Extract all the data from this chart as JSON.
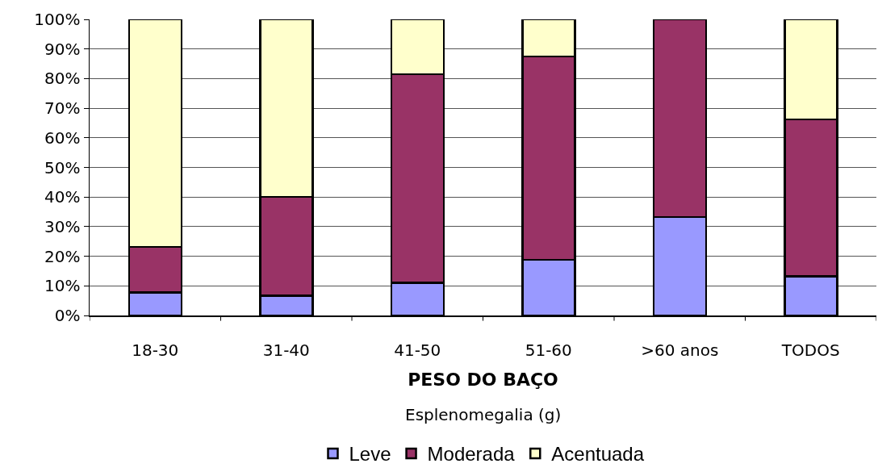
{
  "chart_data": {
    "type": "bar",
    "stacked": true,
    "xlabel": "PESO DO BAÇO",
    "annotations": [
      "Esplenomegalia (g)"
    ],
    "categories": [
      "18-30",
      "31-40",
      "41-50",
      "51-60",
      ">60 anos",
      "TODOS"
    ],
    "series": [
      {
        "name": "Leve",
        "color": "#9999ff",
        "values": [
          7.7,
          6.7,
          11.1,
          18.8,
          33.3,
          13.2
        ]
      },
      {
        "name": "Moderada",
        "color": "#993366",
        "values": [
          15.4,
          33.3,
          70.4,
          68.7,
          66.7,
          53.0
        ]
      },
      {
        "name": "Acentuada",
        "color": "#ffffcc",
        "values": [
          76.9,
          60.0,
          18.5,
          12.5,
          0,
          33.8
        ]
      }
    ],
    "ylim": [
      0,
      100
    ],
    "yticks": [
      {
        "value": 0,
        "label": "0%"
      },
      {
        "value": 10,
        "label": "10%"
      },
      {
        "value": 20,
        "label": "20%"
      },
      {
        "value": 30,
        "label": "30%"
      },
      {
        "value": 40,
        "label": "40%"
      },
      {
        "value": 50,
        "label": "50%"
      },
      {
        "value": 60,
        "label": "60%"
      },
      {
        "value": 70,
        "label": "70%"
      },
      {
        "value": 80,
        "label": "80%"
      },
      {
        "value": 90,
        "label": "90%"
      },
      {
        "value": 100,
        "label": "100%"
      }
    ],
    "grid": "y",
    "legend": "bottom"
  }
}
